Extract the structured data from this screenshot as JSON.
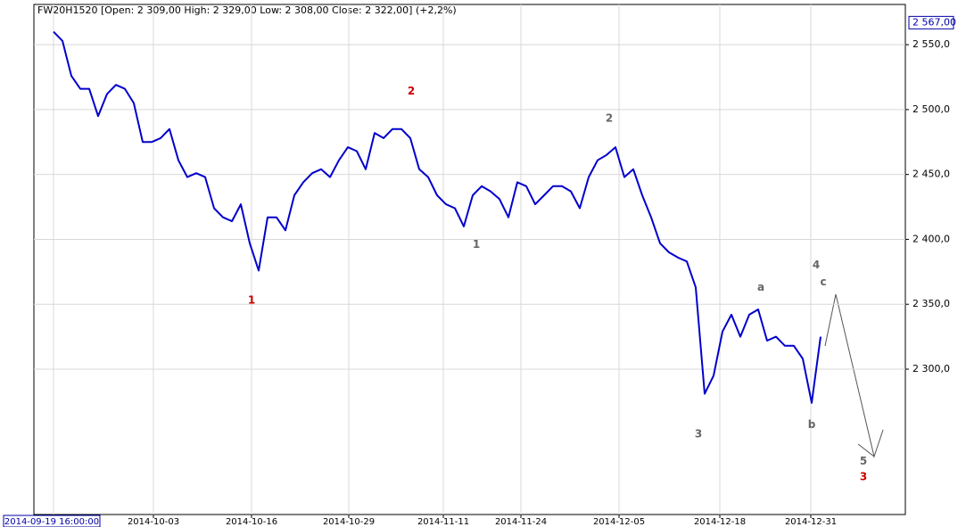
{
  "chart_data": {
    "type": "line",
    "title": "FW20H1520 [Open: 2 309,00  High: 2 329,00  Low: 2 308,00  Close: 2 322,00] (+2,2%)",
    "color": "#0000cc",
    "grid": true,
    "x": [
      0,
      1,
      2,
      3,
      4,
      5,
      6,
      7,
      8,
      9,
      10,
      11,
      12,
      13,
      14,
      15,
      16,
      17,
      18,
      19,
      20,
      21,
      22,
      23,
      24,
      25,
      26,
      27,
      28,
      29,
      30,
      31,
      32,
      33,
      34,
      35,
      36,
      37,
      38,
      39,
      40,
      41,
      42,
      43,
      44,
      45,
      46,
      47,
      48,
      49,
      50,
      51,
      52,
      53,
      54,
      55,
      56,
      57,
      58,
      59,
      60,
      61,
      62,
      63,
      64,
      65,
      66,
      67,
      68,
      69,
      70,
      71,
      72,
      73,
      74,
      75,
      76,
      77,
      78,
      79,
      80,
      81,
      82,
      83,
      84,
      85,
      86
    ],
    "values": [
      2560,
      2553,
      2526,
      2516,
      2516,
      2495,
      2512,
      2519,
      2516,
      2505,
      2475,
      2475,
      2478,
      2485,
      2461,
      2448,
      2451,
      2448,
      2424,
      2417,
      2414,
      2427,
      2397,
      2376,
      2417,
      2417,
      2407,
      2434,
      2444,
      2451,
      2454,
      2448,
      2461,
      2471,
      2468,
      2454,
      2482,
      2478,
      2485,
      2485,
      2478,
      2454,
      2448,
      2434,
      2427,
      2424,
      2410,
      2434,
      2441,
      2437,
      2431,
      2417,
      2444,
      2441,
      2427,
      2434,
      2441,
      2441,
      2437,
      2424,
      2448,
      2461,
      2465,
      2471,
      2448,
      2454,
      2434,
      2417,
      2397,
      2390,
      2386,
      2383,
      2363,
      2281,
      2295,
      2329,
      2342,
      2325,
      2342,
      2346,
      2322,
      2325,
      2318,
      2318,
      2308,
      2274,
      2325
    ],
    "xlim": [
      -2.2,
      95.5
    ],
    "xticks": [
      {
        "value": 0,
        "label": "2014-09-19 16:00:00"
      },
      {
        "value": 11.2,
        "label": "2014-10-03"
      },
      {
        "value": 22.2,
        "label": "2014-10-16"
      },
      {
        "value": 33.1,
        "label": "2014-10-29"
      },
      {
        "value": 43.7,
        "label": "2014-11-11"
      },
      {
        "value": 52.4,
        "label": "2014-11-24"
      },
      {
        "value": 63.4,
        "label": "2014-12-05"
      },
      {
        "value": 74.7,
        "label": "2014-12-18"
      },
      {
        "value": 84.9,
        "label": "2014-12-31"
      }
    ],
    "ylim": [
      2188,
      2581
    ],
    "yticks": [
      {
        "value": 2300,
        "label": "2 300,0"
      },
      {
        "value": 2350,
        "label": "2 350,0"
      },
      {
        "value": 2400,
        "label": "2 400,0"
      },
      {
        "value": 2450,
        "label": "2 450,0"
      },
      {
        "value": 2500,
        "label": "2 500,0"
      },
      {
        "value": 2550,
        "label": "2 550,0"
      }
    ],
    "price_marker": {
      "value": 2567,
      "label": "2 567,00"
    },
    "annotations": [
      {
        "text": "1",
        "x": 22.2,
        "y": 2353,
        "color": "#cc0000"
      },
      {
        "text": "2",
        "x": 40.1,
        "y": 2514,
        "color": "#cc0000"
      },
      {
        "text": "1",
        "x": 47.4,
        "y": 2396,
        "color": "#666666"
      },
      {
        "text": "2",
        "x": 62.3,
        "y": 2493,
        "color": "#666666"
      },
      {
        "text": "3",
        "x": 72.3,
        "y": 2250,
        "color": "#666666"
      },
      {
        "text": "a",
        "x": 79.3,
        "y": 2363,
        "color": "#666666"
      },
      {
        "text": "b",
        "x": 85.0,
        "y": 2257,
        "color": "#666666"
      },
      {
        "text": "4",
        "x": 85.5,
        "y": 2380,
        "color": "#666666"
      },
      {
        "text": "c",
        "x": 86.3,
        "y": 2367,
        "color": "#666666"
      },
      {
        "text": "5",
        "x": 90.8,
        "y": 2229,
        "color": "#666666"
      },
      {
        "text": "3",
        "x": 90.8,
        "y": 2217,
        "color": "#cc0000"
      }
    ]
  }
}
